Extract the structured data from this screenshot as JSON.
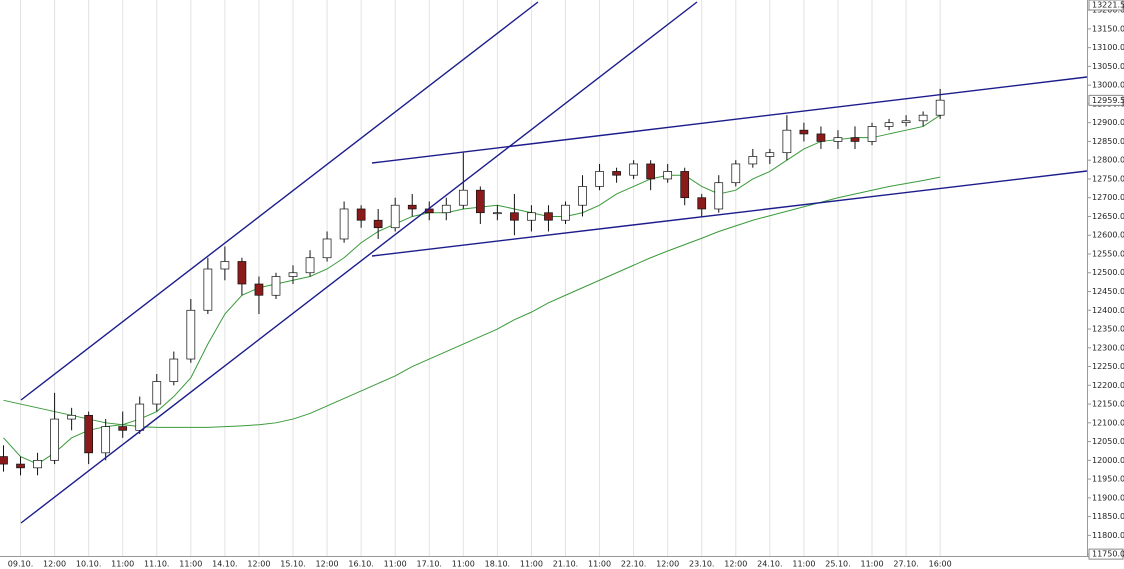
{
  "chart_data": {
    "type": "candlestick",
    "categories": [
      null,
      "09.10.",
      null,
      "12:00",
      null,
      "10.10.",
      null,
      "11:00",
      null,
      "11.10.",
      null,
      "11:00",
      null,
      "14.10.",
      null,
      "12:00",
      null,
      "15.10.",
      null,
      "12:00",
      null,
      "16.10.",
      null,
      "11:00",
      null,
      "17.10.",
      null,
      "11:00",
      null,
      "18.10.",
      null,
      "11:00",
      null,
      "21.10.",
      null,
      "11:00",
      null,
      "22.10.",
      null,
      "12:00",
      null,
      "23.10.",
      null,
      "12:00",
      null,
      "24.10.",
      null,
      "11:00",
      null,
      "25.10.",
      null,
      "11:00",
      null,
      "27.10.",
      null,
      "16:00"
    ],
    "open": [
      12010,
      11990,
      11980,
      12000,
      12110,
      12120,
      12020,
      12090,
      12080,
      12150,
      12210,
      12270,
      12400,
      12510,
      12530,
      12470,
      12440,
      12490,
      12500,
      12540,
      12590,
      12670,
      12640,
      12620,
      12680,
      12670,
      12660,
      12680,
      12720,
      12660,
      12660,
      12640,
      12660,
      12640,
      12680,
      12730,
      12770,
      12760,
      12790,
      12750,
      12770,
      12700,
      12670,
      12740,
      12790,
      12810,
      12820,
      12880,
      12870,
      12850,
      12860,
      12850,
      12890,
      12900,
      12905,
      12920
    ],
    "high": [
      12040,
      12010,
      12020,
      12180,
      12140,
      12130,
      12110,
      12130,
      12170,
      12230,
      12290,
      12430,
      12540,
      12570,
      12540,
      12490,
      12500,
      12520,
      12560,
      12610,
      12690,
      12680,
      12670,
      12700,
      12710,
      12690,
      12700,
      12820,
      12730,
      12680,
      12710,
      12680,
      12680,
      12690,
      12760,
      12790,
      12780,
      12800,
      12800,
      12790,
      12780,
      12710,
      12760,
      12800,
      12830,
      12830,
      12920,
      12900,
      12890,
      12880,
      12890,
      12900,
      12910,
      12920,
      12930,
      12990
    ],
    "low": [
      11970,
      11960,
      11960,
      11990,
      12080,
      11990,
      12000,
      12060,
      12070,
      12130,
      12200,
      12260,
      12390,
      12480,
      12440,
      12390,
      12430,
      12470,
      12490,
      12530,
      12580,
      12620,
      12590,
      12610,
      12650,
      12640,
      12640,
      12670,
      12630,
      12640,
      12600,
      12610,
      12610,
      12630,
      12650,
      12720,
      12740,
      12750,
      12720,
      12740,
      12680,
      12650,
      12660,
      12730,
      12780,
      12790,
      12800,
      12850,
      12830,
      12830,
      12830,
      12840,
      12880,
      12890,
      12890,
      12910
    ],
    "close": [
      11990,
      11980,
      12000,
      12110,
      12120,
      12020,
      12090,
      12080,
      12150,
      12210,
      12270,
      12400,
      12510,
      12530,
      12470,
      12440,
      12490,
      12500,
      12540,
      12590,
      12670,
      12640,
      12620,
      12680,
      12670,
      12660,
      12680,
      12720,
      12660,
      12660,
      12640,
      12660,
      12640,
      12680,
      12730,
      12770,
      12760,
      12790,
      12750,
      12770,
      12700,
      12670,
      12740,
      12790,
      12810,
      12820,
      12880,
      12870,
      12850,
      12860,
      12850,
      12890,
      12900,
      12905,
      12920,
      12960
    ],
    "up_color": "#ffffff",
    "down_color": "#8b1a1a",
    "lines": [
      {
        "color": "#3a9a3a",
        "values": [
          12060,
          12010,
          11990,
          12020,
          12060,
          12080,
          12090,
          12095,
          12110,
          12130,
          12170,
          12220,
          12310,
          12390,
          12440,
          12460,
          12470,
          12480,
          12490,
          12510,
          12540,
          12580,
          12610,
          12630,
          12650,
          12660,
          12660,
          12670,
          12675,
          12680,
          12670,
          12660,
          12650,
          12650,
          12660,
          12680,
          12710,
          12730,
          12750,
          12760,
          12760,
          12730,
          12710,
          12720,
          12750,
          12770,
          12800,
          12830,
          12850,
          12855,
          12860,
          12860,
          12870,
          12880,
          12890,
          12920
        ]
      },
      {
        "color": "#3a9a3a",
        "values": [
          12160,
          12150,
          12140,
          12130,
          12120,
          12110,
          12100,
          12095,
          12090,
          12088,
          12088,
          12088,
          12088,
          12090,
          12092,
          12095,
          12100,
          12110,
          12125,
          12145,
          12165,
          12185,
          12205,
          12225,
          12250,
          12270,
          12290,
          12310,
          12330,
          12350,
          12375,
          12395,
          12420,
          12440,
          12460,
          12480,
          12500,
          12520,
          12540,
          12558,
          12575,
          12592,
          12610,
          12625,
          12640,
          12652,
          12664,
          12676,
          12688,
          12700,
          12710,
          12720,
          12730,
          12738,
          12746,
          12755
        ]
      }
    ],
    "ylim": [
      11745,
      13227
    ],
    "yticks": [
      {
        "value": 11750,
        "label": "11750.0"
      },
      {
        "value": 11800,
        "label": "11800.0"
      },
      {
        "value": 11850,
        "label": "11850.0"
      },
      {
        "value": 11900,
        "label": "11900.0"
      },
      {
        "value": 11950,
        "label": "11950.0"
      },
      {
        "value": 12000,
        "label": "12000.0"
      },
      {
        "value": 12050,
        "label": "12050.0"
      },
      {
        "value": 12100,
        "label": "12100.0"
      },
      {
        "value": 12150,
        "label": "12150.0"
      },
      {
        "value": 12200,
        "label": "12200.0"
      },
      {
        "value": 12250,
        "label": "12250.0"
      },
      {
        "value": 12300,
        "label": "12300.0"
      },
      {
        "value": 12350,
        "label": "12350.0"
      },
      {
        "value": 12400,
        "label": "12400.0"
      },
      {
        "value": 12450,
        "label": "12450.0"
      },
      {
        "value": 12500,
        "label": "12500.0"
      },
      {
        "value": 12550,
        "label": "12550.0"
      },
      {
        "value": 12600,
        "label": "12600.0"
      },
      {
        "value": 12650,
        "label": "12650.0"
      },
      {
        "value": 12700,
        "label": "12700.0"
      },
      {
        "value": 12750,
        "label": "12750.0"
      },
      {
        "value": 12800,
        "label": "12800.0"
      },
      {
        "value": 12850,
        "label": "12850.0"
      },
      {
        "value": 12900,
        "label": "12900.0"
      },
      {
        "value": 12950,
        "label": "12950.0"
      },
      {
        "value": 13000,
        "label": "13000.0"
      },
      {
        "value": 13050,
        "label": "13050.0"
      },
      {
        "value": 13100,
        "label": "13100.0"
      },
      {
        "value": 13150,
        "label": "13150.0"
      },
      {
        "value": 13200,
        "label": "13200.0"
      }
    ],
    "markers": [
      {
        "value": 13221.5,
        "label": "13221.5"
      },
      {
        "value": 12959.5,
        "label": "12959.5"
      }
    ],
    "grid": "x"
  }
}
